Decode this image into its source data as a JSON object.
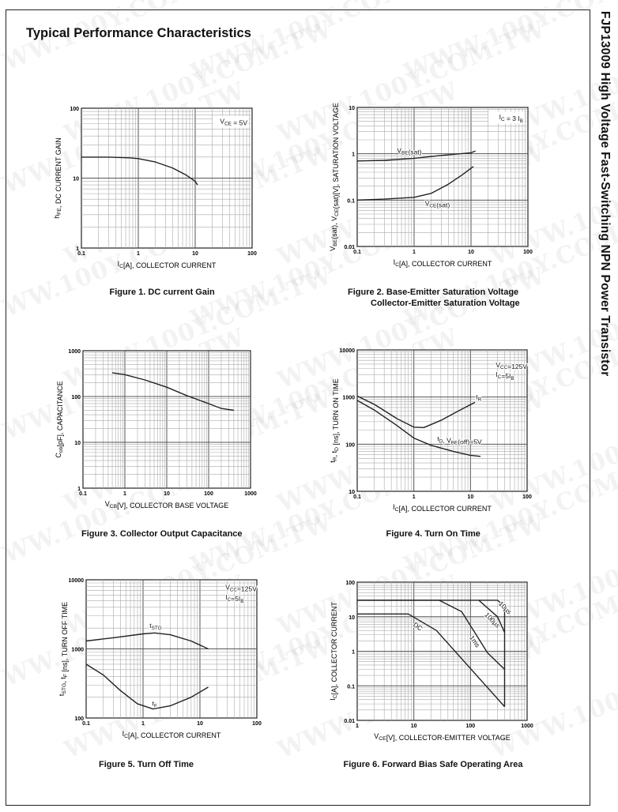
{
  "page": {
    "heading": "Typical Performance Characteristics",
    "side_title": "FJP13009  High Voltage Fast-Switching NPN Power Transistor",
    "watermark": "WWW.100Y.COM.TW"
  },
  "chart_data": [
    {
      "type": "line",
      "scale": "log-log",
      "caption": [
        "Figure 1. DC current Gain"
      ],
      "xlabel": "I_{C}[A], COLLECTOR CURRENT",
      "ylabel": "h_{FE}, DC CURRENT GAIN",
      "xlim": [
        0.1,
        100
      ],
      "ylim": [
        1,
        100
      ],
      "xticks": [
        "0.1",
        "1",
        "10",
        "100"
      ],
      "yticks": [
        "1",
        "10",
        "100"
      ],
      "series": [
        {
          "name": "hFE",
          "points": [
            [
              0.1,
              20
            ],
            [
              0.3,
              20
            ],
            [
              0.7,
              19.5
            ],
            [
              1,
              19
            ],
            [
              2,
              17
            ],
            [
              4,
              14
            ],
            [
              7,
              11
            ],
            [
              10,
              9
            ],
            [
              11,
              8
            ]
          ]
        }
      ],
      "annotations": [
        {
          "text": "V_{CE} = 5V",
          "at": [
            45,
            60
          ],
          "boxed": true
        }
      ]
    },
    {
      "type": "line",
      "scale": "log-log",
      "caption": [
        "Figure 2. Base-Emitter Saturation Voltage",
        "Collector-Emitter Saturation Voltage"
      ],
      "xlabel": "I_{C}[A], COLLECTOR CURRENT",
      "ylabel": "V_{BE}(sat), V_{CE}(sat)[V], SATURATION VOLTAGE",
      "xlim": [
        0.1,
        100
      ],
      "ylim": [
        0.01,
        10
      ],
      "xticks": [
        "0.1",
        "1",
        "10",
        "100"
      ],
      "yticks": [
        "0.01",
        "0.1",
        "1",
        "10"
      ],
      "series": [
        {
          "name": "VBE(sat)",
          "points": [
            [
              0.1,
              0.7
            ],
            [
              0.3,
              0.72
            ],
            [
              1,
              0.8
            ],
            [
              3,
              0.92
            ],
            [
              10,
              1.05
            ],
            [
              12,
              1.15
            ]
          ]
        },
        {
          "name": "VCE(sat)",
          "points": [
            [
              0.1,
              0.1
            ],
            [
              0.3,
              0.105
            ],
            [
              1,
              0.115
            ],
            [
              2,
              0.14
            ],
            [
              4,
              0.22
            ],
            [
              7,
              0.35
            ],
            [
              11,
              0.53
            ]
          ]
        }
      ],
      "annotations": [
        {
          "text": "I_{C} = 3 I_{B}",
          "at": [
            45,
            5.5
          ],
          "boxed": true
        },
        {
          "text": "V_{BE}(sat)",
          "at": [
            0.5,
            1.05
          ]
        },
        {
          "text": "V_{CE}(sat)",
          "at": [
            1.55,
            0.075
          ]
        }
      ]
    },
    {
      "type": "line",
      "scale": "log-log",
      "caption": [
        "Figure 3. Collector Output Capacitance"
      ],
      "xlabel": "V_{CB}[V], COLLECTOR BASE VOLTAGE",
      "ylabel": "C_{ob}[pF], CAPACITANCE",
      "xlim": [
        0.1,
        1000
      ],
      "ylim": [
        1,
        1000
      ],
      "xticks": [
        "0.1",
        "1",
        "10",
        "100",
        "1000"
      ],
      "yticks": [
        "1",
        "10",
        "100",
        "1000"
      ],
      "series": [
        {
          "name": "Cob",
          "points": [
            [
              0.5,
              330
            ],
            [
              1,
              300
            ],
            [
              3,
              230
            ],
            [
              10,
              160
            ],
            [
              30,
              105
            ],
            [
              100,
              70
            ],
            [
              200,
              55
            ],
            [
              400,
              50
            ]
          ]
        }
      ],
      "annotations": []
    },
    {
      "type": "line",
      "scale": "log-log",
      "caption": [
        "Figure 4. Turn On Time"
      ],
      "xlabel": "I_{C}[A], COLLECTOR CURRENT",
      "ylabel": "t_{R}, t_{D} [ns], TURN ON TIME",
      "xlim": [
        0.1,
        100
      ],
      "ylim": [
        10,
        10000
      ],
      "xticks": [
        "0.1",
        "1",
        "10",
        "100"
      ],
      "yticks": [
        "10",
        "100",
        "1000",
        "10000"
      ],
      "series": [
        {
          "name": "tR",
          "points": [
            [
              0.1,
              1050
            ],
            [
              0.2,
              700
            ],
            [
              0.5,
              350
            ],
            [
              1,
              230
            ],
            [
              1.5,
              225
            ],
            [
              3,
              320
            ],
            [
              6,
              500
            ],
            [
              12,
              770
            ]
          ]
        },
        {
          "name": "tD",
          "points": [
            [
              0.1,
              850
            ],
            [
              0.2,
              530
            ],
            [
              0.5,
              250
            ],
            [
              1,
              135
            ],
            [
              2,
              95
            ],
            [
              5,
              70
            ],
            [
              10,
              58
            ],
            [
              15,
              55
            ]
          ]
        }
      ],
      "annotations": [
        {
          "text": "V_{CC}=125V",
          "at": [
            28,
            4300
          ]
        },
        {
          "text": "I_{C}=5I_{B}",
          "at": [
            28,
            2700
          ]
        },
        {
          "text": "t_{R}",
          "at": [
            12.5,
            900
          ]
        },
        {
          "text": "t_{D}, V_{BE}(off)=5V",
          "at": [
            2.6,
            115
          ]
        }
      ]
    },
    {
      "type": "line",
      "scale": "log-log",
      "caption": [
        "Figure 5. Turn Off Time"
      ],
      "xlabel": "I_{C}[A], COLLECTOR CURRENT",
      "ylabel": "t_{STG}, t_{F} [ns], TURN OFF TIME",
      "xlim": [
        0.1,
        100
      ],
      "ylim": [
        100,
        10000
      ],
      "xticks": [
        "0.1",
        "1",
        "10",
        "100"
      ],
      "yticks": [
        "100",
        "1000",
        "10000"
      ],
      "series": [
        {
          "name": "tSTG",
          "points": [
            [
              0.1,
              1300
            ],
            [
              0.3,
              1450
            ],
            [
              1,
              1650
            ],
            [
              1.6,
              1700
            ],
            [
              3,
              1600
            ],
            [
              7,
              1300
            ],
            [
              14,
              1000
            ]
          ]
        },
        {
          "name": "tF",
          "points": [
            [
              0.1,
              600
            ],
            [
              0.2,
              420
            ],
            [
              0.4,
              250
            ],
            [
              0.8,
              160
            ],
            [
              1.5,
              135
            ],
            [
              3,
              150
            ],
            [
              7,
              200
            ],
            [
              14,
              280
            ]
          ]
        }
      ],
      "annotations": [
        {
          "text": "V_{CC}=125V",
          "at": [
            28,
            7200
          ]
        },
        {
          "text": "I_{C}=5I_{B}",
          "at": [
            28,
            5200
          ]
        },
        {
          "text": "t_{STG}",
          "at": [
            1.3,
            2000
          ]
        },
        {
          "text": "t_{F}",
          "at": [
            1.45,
            150
          ]
        }
      ]
    },
    {
      "type": "line",
      "scale": "log-log",
      "caption": [
        "Figure 6. Forward Bias Safe Operating Area"
      ],
      "xlabel": "V_{CE}[V], COLLECTOR-EMITTER VOLTAGE",
      "ylabel": "I_{C}[A], COLLECTOR CURRENT",
      "xlim": [
        1,
        1000
      ],
      "ylim": [
        0.01,
        100
      ],
      "xticks": [
        "1",
        "10",
        "100",
        "1000"
      ],
      "yticks": [
        "0.01",
        "0.1",
        "1",
        "10",
        "100"
      ],
      "series": [
        {
          "name": "DC",
          "points": [
            [
              1,
              12
            ],
            [
              8,
              12
            ],
            [
              25,
              4
            ],
            [
              400,
              0.025
            ]
          ]
        },
        {
          "name": "1ms",
          "points": [
            [
              1,
              30
            ],
            [
              28,
              30
            ],
            [
              70,
              14
            ],
            [
              200,
              0.9
            ],
            [
              400,
              0.3
            ]
          ]
        },
        {
          "name": "100µs",
          "points": [
            [
              140,
              30
            ],
            [
              300,
              10
            ],
            [
              400,
              3.5
            ]
          ]
        },
        {
          "name": "10µs",
          "points": [
            [
              1,
              30
            ],
            [
              300,
              30
            ],
            [
              400,
              20
            ],
            [
              400,
              0.025
            ]
          ]
        }
      ],
      "annotations": [
        {
          "text": "DC",
          "at": [
            9.5,
            5.5
          ]
        },
        {
          "text": "1ms",
          "at": [
            95,
            2.5
          ]
        },
        {
          "text": "100µs",
          "at": [
            175,
            11
          ]
        },
        {
          "text": "10µs",
          "at": [
            310,
            23
          ]
        }
      ]
    }
  ]
}
